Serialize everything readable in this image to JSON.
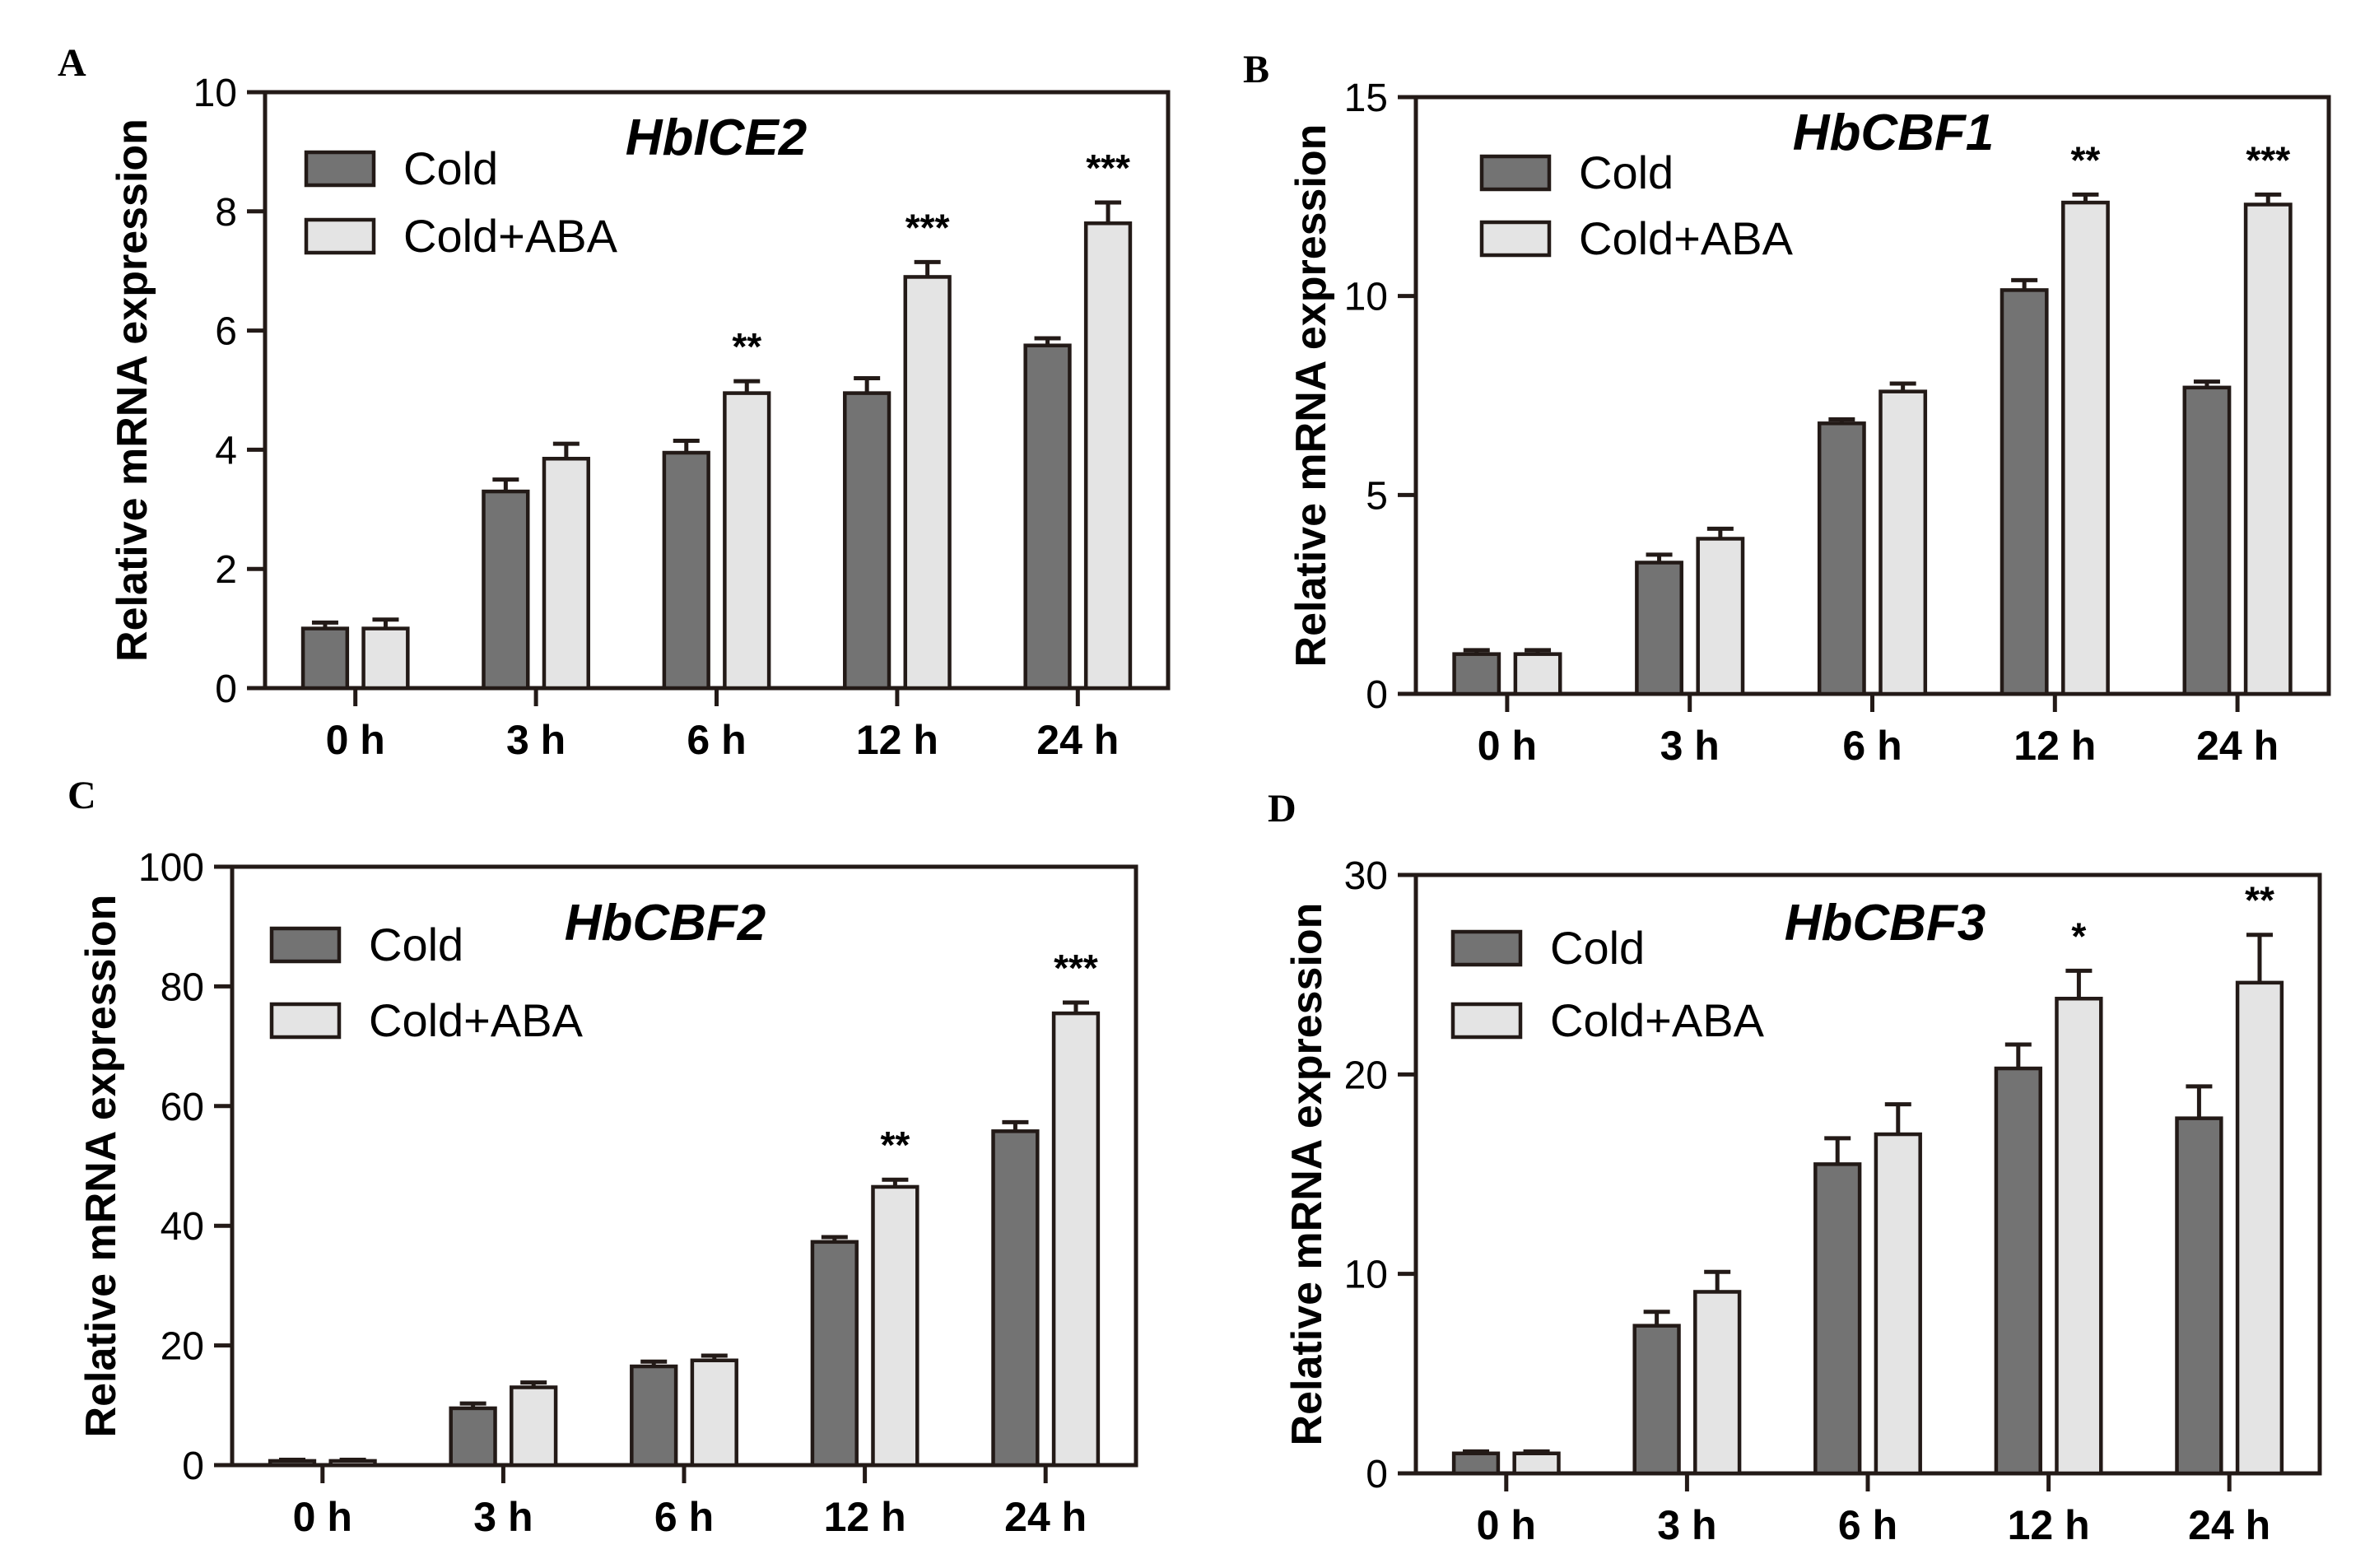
{
  "colors": {
    "cold": "#737373",
    "cold_aba": "#e4e4e4",
    "axis": "#231a17",
    "bar_stroke": "#231a17"
  },
  "chart_data": [
    {
      "panel": "A",
      "type": "bar",
      "title": "HbICE2",
      "xlabel": "",
      "ylabel": "Relative mRNA expression",
      "categories": [
        "0 h",
        "3 h",
        "6 h",
        "12 h",
        "24 h"
      ],
      "ylim": [
        0,
        10
      ],
      "yticks": [
        0,
        2,
        4,
        6,
        8,
        10
      ],
      "series": [
        {
          "name": "Cold",
          "values": [
            1.0,
            3.3,
            3.95,
            4.95,
            5.75
          ],
          "errors": [
            0.1,
            0.2,
            0.2,
            0.25,
            0.12
          ]
        },
        {
          "name": "Cold+ABA",
          "values": [
            1.0,
            3.85,
            4.95,
            6.9,
            7.8
          ],
          "errors": [
            0.15,
            0.25,
            0.2,
            0.25,
            0.35
          ]
        }
      ],
      "significance": [
        "",
        "",
        "**",
        "***",
        "***"
      ],
      "legend": "top-left"
    },
    {
      "panel": "B",
      "type": "bar",
      "title": "HbCBF1",
      "xlabel": "",
      "ylabel": "Relative mRNA expression",
      "categories": [
        "0 h",
        "3 h",
        "6 h",
        "12 h",
        "24 h"
      ],
      "ylim": [
        0,
        15
      ],
      "yticks": [
        0,
        5,
        10,
        15
      ],
      "series": [
        {
          "name": "Cold",
          "values": [
            1.0,
            3.3,
            6.8,
            10.15,
            7.7
          ],
          "errors": [
            0.1,
            0.2,
            0.1,
            0.25,
            0.15
          ]
        },
        {
          "name": "Cold+ABA",
          "values": [
            1.0,
            3.9,
            7.6,
            12.35,
            12.3
          ],
          "errors": [
            0.1,
            0.25,
            0.2,
            0.2,
            0.25
          ]
        }
      ],
      "significance": [
        "",
        "",
        "",
        "**",
        "***"
      ],
      "legend": "top-left"
    },
    {
      "panel": "C",
      "type": "bar",
      "title": "HbCBF2",
      "xlabel": "",
      "ylabel": "Relative mRNA expression",
      "categories": [
        "0 h",
        "3 h",
        "6 h",
        "12 h",
        "24 h"
      ],
      "ylim": [
        0,
        100
      ],
      "yticks": [
        0,
        20,
        40,
        60,
        80,
        100
      ],
      "series": [
        {
          "name": "Cold",
          "values": [
            0.7,
            9.5,
            16.5,
            37.3,
            55.8
          ],
          "errors": [
            0.2,
            0.8,
            0.8,
            0.8,
            1.5
          ]
        },
        {
          "name": "Cold+ABA",
          "values": [
            0.7,
            13.0,
            17.5,
            46.5,
            75.5
          ],
          "errors": [
            0.2,
            0.8,
            0.8,
            1.2,
            1.8
          ]
        }
      ],
      "significance": [
        "",
        "",
        "",
        "**",
        "***"
      ],
      "legend": "top-left"
    },
    {
      "panel": "D",
      "type": "bar",
      "title": "HbCBF3",
      "xlabel": "",
      "ylabel": "Relative mRNA expression",
      "categories": [
        "0 h",
        "3 h",
        "6 h",
        "12 h",
        "24 h"
      ],
      "ylim": [
        0,
        30
      ],
      "yticks": [
        0,
        10,
        20,
        30
      ],
      "series": [
        {
          "name": "Cold",
          "values": [
            1.0,
            7.4,
            15.5,
            20.3,
            17.8
          ],
          "errors": [
            0.1,
            0.7,
            1.3,
            1.2,
            1.6
          ]
        },
        {
          "name": "Cold+ABA",
          "values": [
            1.0,
            9.1,
            17.0,
            23.8,
            24.6
          ],
          "errors": [
            0.1,
            1.0,
            1.5,
            1.4,
            2.4
          ]
        }
      ],
      "significance": [
        "",
        "",
        "",
        "*",
        "**"
      ],
      "legend": "top-left"
    }
  ]
}
